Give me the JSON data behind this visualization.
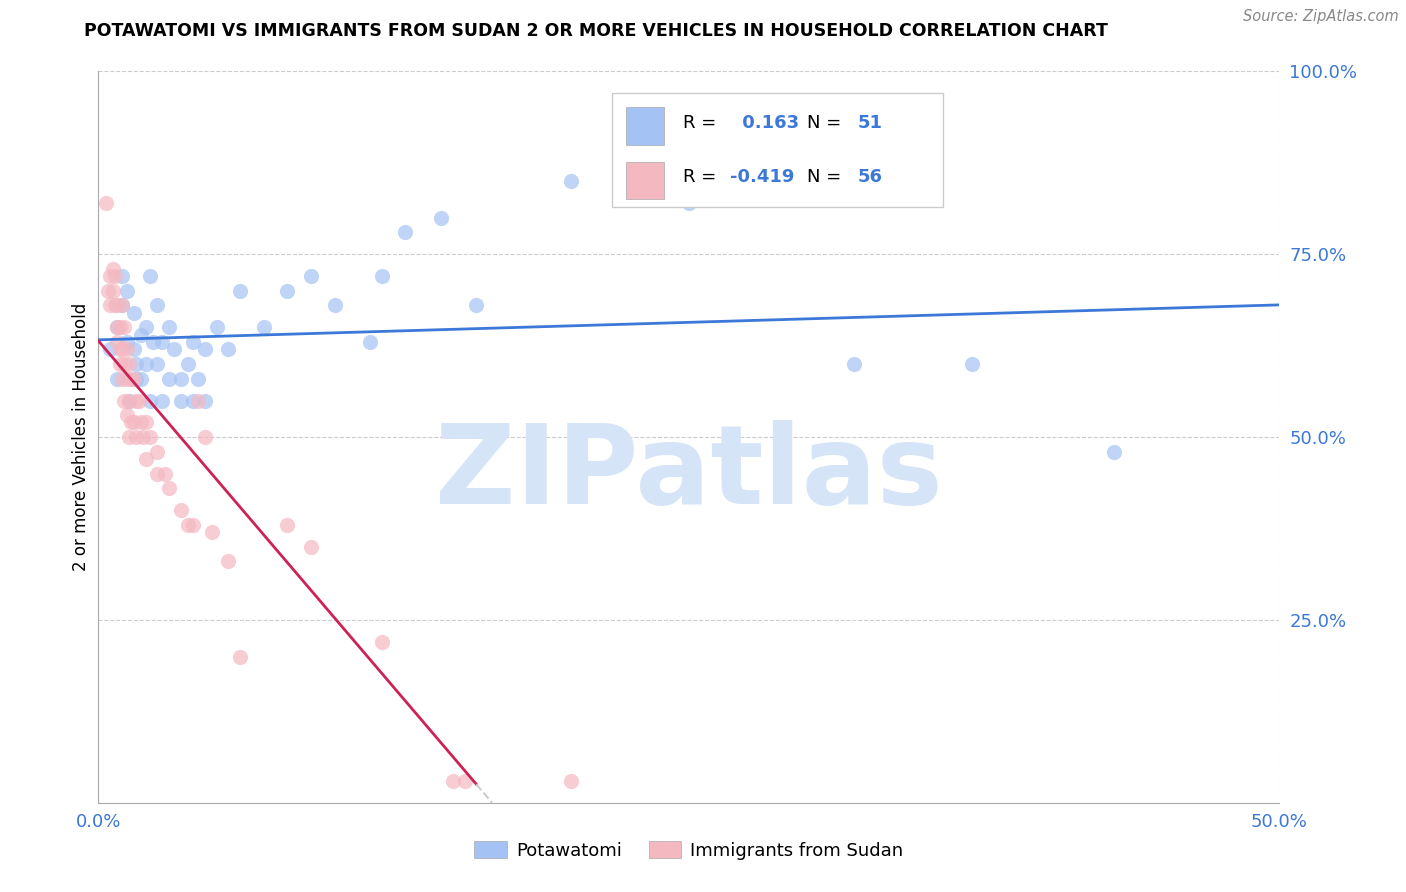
{
  "title": "POTAWATOMI VS IMMIGRANTS FROM SUDAN 2 OR MORE VEHICLES IN HOUSEHOLD CORRELATION CHART",
  "source": "Source: ZipAtlas.com",
  "ylabel": "2 or more Vehicles in Household",
  "xlim": [
    0,
    0.5
  ],
  "ylim": [
    0,
    1.0
  ],
  "xticks": [
    0.0,
    0.5
  ],
  "xticklabels": [
    "0.0%",
    "50.0%"
  ],
  "yticks": [
    0.0,
    0.25,
    0.5,
    0.75,
    1.0
  ],
  "yticklabels": [
    "",
    "25.0%",
    "50.0%",
    "75.0%",
    "100.0%"
  ],
  "blue_color": "#a4c2f4",
  "pink_color": "#f4b8c1",
  "blue_line_color": "#3c78d8",
  "pink_line_color": "#cc2255",
  "text_color_blue": "#3c78d8",
  "watermark_color": "#d6e4f7",
  "watermark": "ZIPatlas",
  "R_blue": 0.163,
  "N_blue": 51,
  "R_pink": -0.419,
  "N_pink": 56,
  "blue_scatter": [
    [
      0.005,
      0.62
    ],
    [
      0.008,
      0.65
    ],
    [
      0.008,
      0.58
    ],
    [
      0.01,
      0.72
    ],
    [
      0.01,
      0.68
    ],
    [
      0.012,
      0.7
    ],
    [
      0.012,
      0.63
    ],
    [
      0.013,
      0.55
    ],
    [
      0.015,
      0.67
    ],
    [
      0.015,
      0.62
    ],
    [
      0.016,
      0.6
    ],
    [
      0.016,
      0.58
    ],
    [
      0.018,
      0.64
    ],
    [
      0.018,
      0.58
    ],
    [
      0.02,
      0.65
    ],
    [
      0.02,
      0.6
    ],
    [
      0.022,
      0.72
    ],
    [
      0.022,
      0.55
    ],
    [
      0.023,
      0.63
    ],
    [
      0.025,
      0.68
    ],
    [
      0.025,
      0.6
    ],
    [
      0.027,
      0.63
    ],
    [
      0.027,
      0.55
    ],
    [
      0.03,
      0.65
    ],
    [
      0.03,
      0.58
    ],
    [
      0.032,
      0.62
    ],
    [
      0.035,
      0.55
    ],
    [
      0.035,
      0.58
    ],
    [
      0.038,
      0.6
    ],
    [
      0.04,
      0.63
    ],
    [
      0.04,
      0.55
    ],
    [
      0.042,
      0.58
    ],
    [
      0.045,
      0.62
    ],
    [
      0.045,
      0.55
    ],
    [
      0.05,
      0.65
    ],
    [
      0.055,
      0.62
    ],
    [
      0.06,
      0.7
    ],
    [
      0.07,
      0.65
    ],
    [
      0.08,
      0.7
    ],
    [
      0.09,
      0.72
    ],
    [
      0.1,
      0.68
    ],
    [
      0.115,
      0.63
    ],
    [
      0.12,
      0.72
    ],
    [
      0.13,
      0.78
    ],
    [
      0.145,
      0.8
    ],
    [
      0.16,
      0.68
    ],
    [
      0.2,
      0.85
    ],
    [
      0.25,
      0.82
    ],
    [
      0.32,
      0.6
    ],
    [
      0.37,
      0.6
    ],
    [
      0.43,
      0.48
    ]
  ],
  "pink_scatter": [
    [
      0.003,
      0.82
    ],
    [
      0.004,
      0.7
    ],
    [
      0.005,
      0.72
    ],
    [
      0.005,
      0.68
    ],
    [
      0.006,
      0.73
    ],
    [
      0.006,
      0.7
    ],
    [
      0.007,
      0.72
    ],
    [
      0.007,
      0.68
    ],
    [
      0.008,
      0.68
    ],
    [
      0.008,
      0.65
    ],
    [
      0.008,
      0.63
    ],
    [
      0.009,
      0.65
    ],
    [
      0.009,
      0.62
    ],
    [
      0.009,
      0.6
    ],
    [
      0.01,
      0.68
    ],
    [
      0.01,
      0.62
    ],
    [
      0.01,
      0.58
    ],
    [
      0.011,
      0.65
    ],
    [
      0.011,
      0.6
    ],
    [
      0.011,
      0.55
    ],
    [
      0.012,
      0.62
    ],
    [
      0.012,
      0.58
    ],
    [
      0.012,
      0.53
    ],
    [
      0.013,
      0.6
    ],
    [
      0.013,
      0.55
    ],
    [
      0.013,
      0.5
    ],
    [
      0.014,
      0.58
    ],
    [
      0.014,
      0.52
    ],
    [
      0.015,
      0.58
    ],
    [
      0.015,
      0.52
    ],
    [
      0.016,
      0.55
    ],
    [
      0.016,
      0.5
    ],
    [
      0.017,
      0.55
    ],
    [
      0.018,
      0.52
    ],
    [
      0.019,
      0.5
    ],
    [
      0.02,
      0.52
    ],
    [
      0.02,
      0.47
    ],
    [
      0.022,
      0.5
    ],
    [
      0.025,
      0.48
    ],
    [
      0.025,
      0.45
    ],
    [
      0.028,
      0.45
    ],
    [
      0.03,
      0.43
    ],
    [
      0.035,
      0.4
    ],
    [
      0.038,
      0.38
    ],
    [
      0.04,
      0.38
    ],
    [
      0.042,
      0.55
    ],
    [
      0.045,
      0.5
    ],
    [
      0.048,
      0.37
    ],
    [
      0.055,
      0.33
    ],
    [
      0.06,
      0.2
    ],
    [
      0.08,
      0.38
    ],
    [
      0.09,
      0.35
    ],
    [
      0.12,
      0.22
    ],
    [
      0.15,
      0.03
    ],
    [
      0.155,
      0.03
    ],
    [
      0.2,
      0.03
    ]
  ]
}
